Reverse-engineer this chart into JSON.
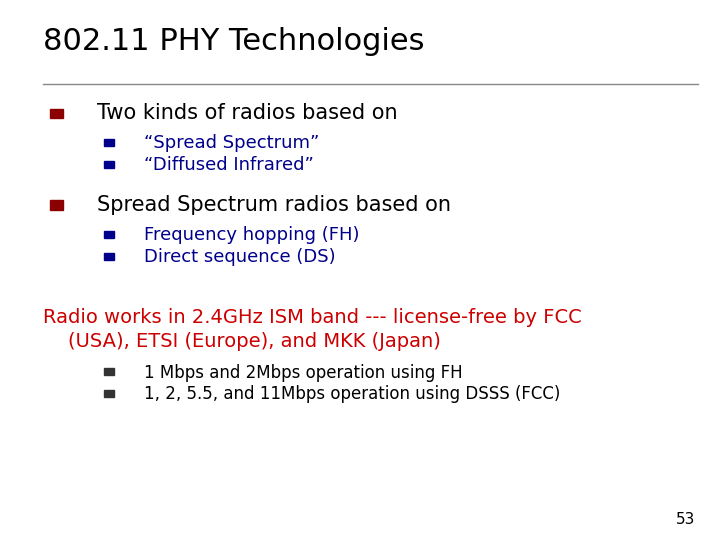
{
  "title": "802.11 PHY Technologies",
  "title_color": "#000000",
  "title_fontsize": 22,
  "background_color": "#ffffff",
  "slide_number": "53",
  "line_color": "#888888",
  "bullet_color": "#8B0000",
  "sub_bullet_color": "#00008B",
  "red_text_color": "#CC0000",
  "dark_blue_color": "#00008B",
  "bullets": [
    {
      "text": "Two kinds of radios based on",
      "color": "#000000",
      "fontsize": 15,
      "sub_bullets": [
        {
          "text": "“Spread Spectrum”",
          "color": "#00008B",
          "fontsize": 13
        },
        {
          "text": "“Diffused Infrared”",
          "color": "#00008B",
          "fontsize": 13
        }
      ]
    },
    {
      "text": "Spread Spectrum radios based on",
      "color": "#000000",
      "fontsize": 15,
      "sub_bullets": [
        {
          "text": "Frequency hopping (FH)",
          "color": "#00008B",
          "fontsize": 13
        },
        {
          "text": "Direct sequence (DS)",
          "color": "#00008B",
          "fontsize": 13
        }
      ]
    }
  ],
  "red_block": {
    "line1": "Radio works in 2.4GHz ISM band --- license-free by FCC",
    "line2": "    (USA), ETSI (Europe), and MKK (Japan)",
    "color": "#CC0000",
    "fontsize": 14
  },
  "red_sub_bullets": [
    {
      "text": "1 Mbps and 2Mbps operation using FH",
      "color": "#000000",
      "fontsize": 12
    },
    {
      "text": "1, 2, 5.5, and 11Mbps operation using DSSS (FCC)",
      "color": "#000000",
      "fontsize": 12
    }
  ]
}
